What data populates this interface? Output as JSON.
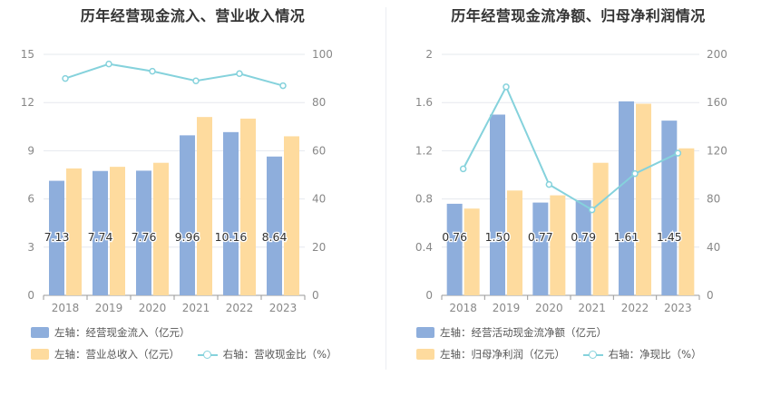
{
  "charts": [
    {
      "title": "历年经营现金流入、营业收入情况",
      "legend": [
        {
          "label": "左轴：经营现金流入（亿元）",
          "kind": "bar",
          "color": "#8eaedc"
        },
        {
          "label": "左轴：营业总收入（亿元）",
          "kind": "bar",
          "color": "#fedb9e"
        },
        {
          "label": "右轴：营收现金比（%）",
          "kind": "line",
          "color": "#85d2dc"
        }
      ]
    },
    {
      "title": "历年经营现金流净额、归母净利润情况",
      "legend": [
        {
          "label": "左轴：经营活动现金流净额（亿元）",
          "kind": "bar",
          "color": "#8eaedc"
        },
        {
          "label": "左轴：归母净利润（亿元）",
          "kind": "bar",
          "color": "#fedb9e"
        },
        {
          "label": "右轴：净现比（%）",
          "kind": "line",
          "color": "#85d2dc"
        }
      ]
    }
  ],
  "chart_data": [
    {
      "type": "bar",
      "title": "历年经营现金流入、营业收入情况",
      "categories": [
        "2018",
        "2019",
        "2020",
        "2021",
        "2022",
        "2023"
      ],
      "series": [
        {
          "name": "经营现金流入（亿元）",
          "axis": "left",
          "type": "bar",
          "values": [
            7.13,
            7.74,
            7.76,
            9.96,
            10.16,
            8.64
          ],
          "labels": [
            "7.13",
            "7.74",
            "7.76",
            "9.96",
            "10.16",
            "8.64"
          ]
        },
        {
          "name": "营业总收入（亿元）",
          "axis": "left",
          "type": "bar",
          "values": [
            7.9,
            8.0,
            8.25,
            11.1,
            11.0,
            9.9
          ]
        },
        {
          "name": "营收现金比（%）",
          "axis": "right",
          "type": "line",
          "values": [
            90,
            96,
            93,
            89,
            92,
            87
          ]
        }
      ],
      "left_axis": {
        "min": 0,
        "max": 15,
        "ticks": [
          "0",
          "3",
          "6",
          "9",
          "12",
          "15"
        ]
      },
      "right_axis": {
        "min": 0,
        "max": 100,
        "ticks": [
          "0",
          "20",
          "40",
          "60",
          "80",
          "100"
        ]
      }
    },
    {
      "type": "bar",
      "title": "历年经营现金流净额、归母净利润情况",
      "categories": [
        "2018",
        "2019",
        "2020",
        "2021",
        "2022",
        "2023"
      ],
      "series": [
        {
          "name": "经营活动现金流净额（亿元）",
          "axis": "left",
          "type": "bar",
          "values": [
            0.76,
            1.5,
            0.77,
            0.79,
            1.61,
            1.45
          ],
          "labels": [
            "0.76",
            "1.50",
            "0.77",
            "0.79",
            "1.61",
            "1.45"
          ]
        },
        {
          "name": "归母净利润（亿元）",
          "axis": "left",
          "type": "bar",
          "values": [
            0.72,
            0.87,
            0.83,
            1.1,
            1.59,
            1.22
          ]
        },
        {
          "name": "净现比（%）",
          "axis": "right",
          "type": "line",
          "values": [
            105,
            173,
            92,
            71,
            101,
            118
          ]
        }
      ],
      "left_axis": {
        "min": 0,
        "max": 2,
        "ticks": [
          "0",
          "0.4",
          "0.8",
          "1.2",
          "1.6",
          "2"
        ]
      },
      "right_axis": {
        "min": 0,
        "max": 200,
        "ticks": [
          "0",
          "40",
          "80",
          "120",
          "160",
          "200"
        ]
      }
    }
  ]
}
